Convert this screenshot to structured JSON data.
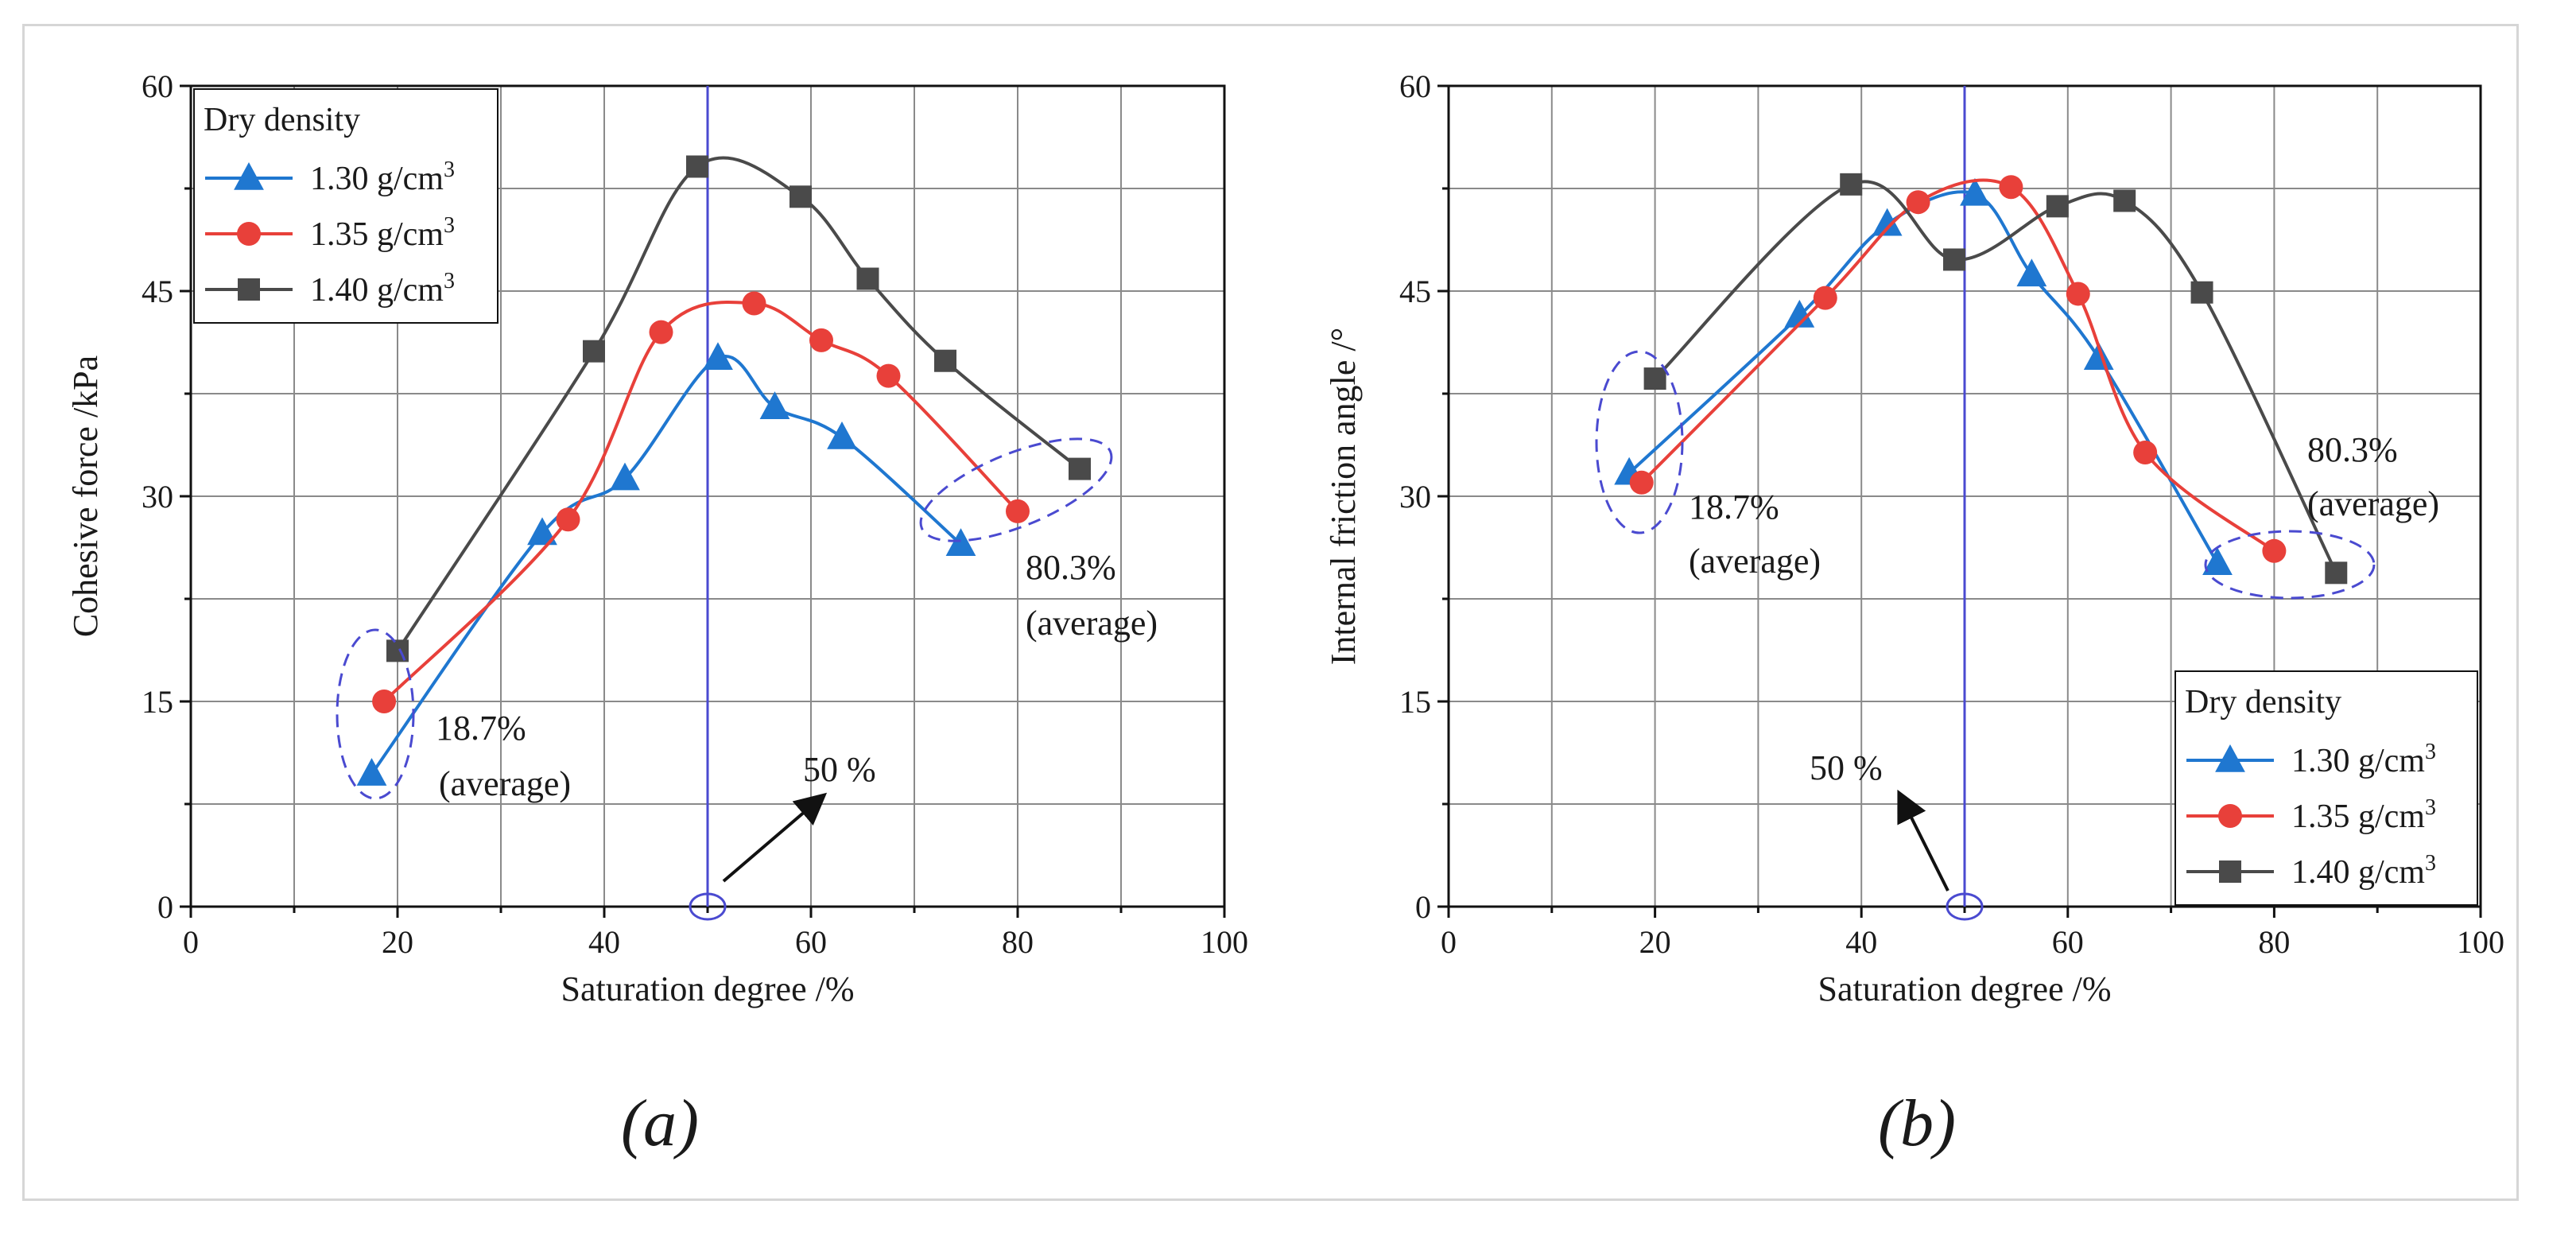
{
  "chart_data": [
    {
      "type": "line",
      "panel_label": "(a)",
      "xlabel": "Saturation degree /%",
      "ylabel": "Cohesive force /kPa",
      "xlim": [
        0,
        100
      ],
      "ylim": [
        0,
        60
      ],
      "x_ticks": [
        0,
        20,
        40,
        60,
        80,
        100
      ],
      "y_ticks": [
        0,
        15,
        30,
        45,
        60
      ],
      "grid": true,
      "legend_title": "Dry density",
      "legend_position": "top-left",
      "colors": {
        "1.30": "#1f77d0",
        "1.35": "#e8403a",
        "1.40": "#4a4a4a",
        "annotation": "#4a4ad0",
        "grid": "#8a8a8a"
      },
      "series": [
        {
          "name": "1.30 g/cm3",
          "label": "1.30 g/cm",
          "marker": "triangle",
          "color": "#1f77d0",
          "x": [
            17.5,
            34,
            42,
            51,
            56.5,
            63,
            74.5
          ],
          "y": [
            9.7,
            27.3,
            31.3,
            40.1,
            36.5,
            34.3,
            26.5
          ]
        },
        {
          "name": "1.35 g/cm3",
          "label": "1.35 g/cm",
          "marker": "circle",
          "color": "#e8403a",
          "x": [
            18.7,
            36.5,
            45.5,
            54.5,
            61,
            67.5,
            80
          ],
          "y": [
            15,
            28.3,
            42,
            44.1,
            41.4,
            38.8,
            28.9
          ]
        },
        {
          "name": "1.40 g/cm3",
          "label": "1.40 g/cm",
          "marker": "square",
          "color": "#4a4a4a",
          "x": [
            20,
            39,
            49,
            59,
            65.5,
            73,
            86
          ],
          "y": [
            18.7,
            40.6,
            54.1,
            51.9,
            45.9,
            39.9,
            32
          ]
        }
      ],
      "vertical_line_x": 50,
      "annotations": {
        "low_pct": "18.7%",
        "low_sub": "(average)",
        "high_pct": "80.3%",
        "high_sub": "(average)",
        "mid": "50 %"
      }
    },
    {
      "type": "line",
      "panel_label": "(b)",
      "xlabel": "Saturation degree /%",
      "ylabel": "Internal friction angle /°",
      "xlim": [
        0,
        100
      ],
      "ylim": [
        0,
        60
      ],
      "x_ticks": [
        0,
        20,
        40,
        60,
        80,
        100
      ],
      "y_ticks": [
        0,
        15,
        30,
        45,
        60
      ],
      "grid": true,
      "legend_title": "Dry density",
      "legend_position": "bottom-right",
      "colors": {
        "1.30": "#1f77d0",
        "1.35": "#e8403a",
        "1.40": "#4a4a4a",
        "annotation": "#4a4ad0",
        "grid": "#8a8a8a"
      },
      "series": [
        {
          "name": "1.30 g/cm3",
          "label": "1.30 g/cm",
          "marker": "triangle",
          "color": "#1f77d0",
          "x": [
            17.5,
            34,
            42.5,
            51,
            56.5,
            63,
            74.5
          ],
          "y": [
            31.7,
            43.2,
            49.9,
            52.1,
            46.2,
            40.1,
            25.1
          ]
        },
        {
          "name": "1.35 g/cm3",
          "label": "1.35 g/cm",
          "marker": "circle",
          "color": "#e8403a",
          "x": [
            18.7,
            36.5,
            45.5,
            54.5,
            61,
            67.5,
            80
          ],
          "y": [
            31,
            44.5,
            51.5,
            52.6,
            44.8,
            33.2,
            26
          ]
        },
        {
          "name": "1.40 g/cm3",
          "label": "1.40 g/cm",
          "marker": "square",
          "color": "#4a4a4a",
          "x": [
            20,
            39,
            49,
            59,
            65.5,
            73,
            86
          ],
          "y": [
            38.6,
            52.8,
            47.3,
            51.2,
            51.6,
            44.9,
            24.4
          ]
        }
      ],
      "vertical_line_x": 50,
      "annotations": {
        "low_pct": "18.7%",
        "low_sub": "(average)",
        "high_pct": "80.3%",
        "high_sub": "(average)",
        "mid": "50 %"
      }
    }
  ]
}
